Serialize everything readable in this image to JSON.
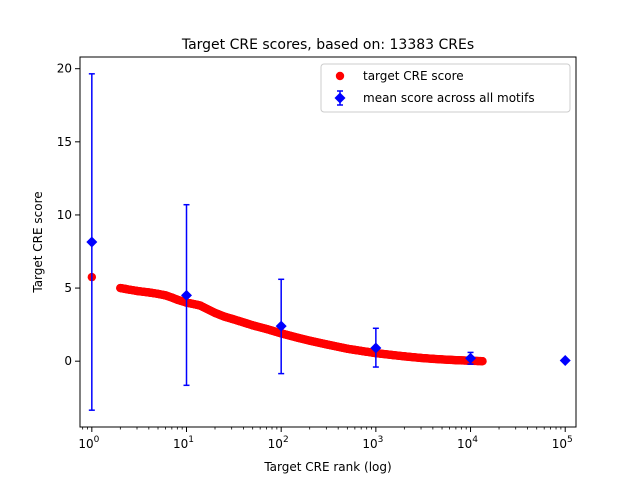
{
  "chart_data": {
    "type": "scatter",
    "title": "Target CRE scores, based on: 13383 CREs",
    "xlabel": "Target CRE rank (log)",
    "ylabel": "Target CRE score",
    "xscale": "log",
    "xlim": [
      0.75,
      130000
    ],
    "ylim": [
      -4.5,
      20.8
    ],
    "x_ticks": [
      {
        "value": 1,
        "base": "10",
        "exp": "0"
      },
      {
        "value": 10,
        "base": "10",
        "exp": "1"
      },
      {
        "value": 100,
        "base": "10",
        "exp": "2"
      },
      {
        "value": 1000,
        "base": "10",
        "exp": "3"
      },
      {
        "value": 10000,
        "base": "10",
        "exp": "4"
      },
      {
        "value": 100000,
        "base": "10",
        "exp": "5"
      }
    ],
    "y_ticks": [
      0,
      5,
      10,
      15,
      20
    ],
    "grid": false,
    "legend_position": "top-right",
    "legend": [
      {
        "label": "target CRE score",
        "color": "#ff0000",
        "marker": "circle"
      },
      {
        "label": "mean score across all motifs",
        "color": "#0000ff",
        "marker": "diamond-errorbar"
      }
    ],
    "series": [
      {
        "name": "target CRE score",
        "color": "#ff0000",
        "marker": "circle",
        "x": [
          1,
          2,
          3,
          4,
          5,
          6,
          7,
          8,
          9,
          10,
          11,
          12,
          13,
          14,
          15,
          20,
          25,
          30,
          40,
          50,
          70,
          100,
          150,
          200,
          300,
          500,
          700,
          1000,
          1500,
          2000,
          3000,
          4000,
          5000,
          7000,
          10000,
          12000,
          13383
        ],
        "y": [
          5.75,
          5.0,
          4.8,
          4.7,
          4.6,
          4.5,
          4.35,
          4.2,
          4.1,
          4.0,
          3.95,
          3.9,
          3.85,
          3.8,
          3.7,
          3.3,
          3.05,
          2.9,
          2.65,
          2.45,
          2.2,
          1.9,
          1.6,
          1.4,
          1.15,
          0.85,
          0.7,
          0.55,
          0.42,
          0.33,
          0.22,
          0.16,
          0.12,
          0.07,
          0.03,
          0.01,
          0.0
        ]
      },
      {
        "name": "mean score across all motifs",
        "color": "#0000ff",
        "marker": "diamond",
        "x": [
          1,
          10,
          100,
          1000,
          10000,
          100000
        ],
        "y": [
          8.15,
          4.5,
          2.4,
          0.9,
          0.2,
          0.05
        ],
        "err_low": [
          -3.35,
          -1.65,
          -0.85,
          -0.4,
          -0.2,
          0.05
        ],
        "err_high": [
          19.65,
          10.7,
          5.6,
          2.25,
          0.6,
          0.05
        ]
      }
    ]
  }
}
